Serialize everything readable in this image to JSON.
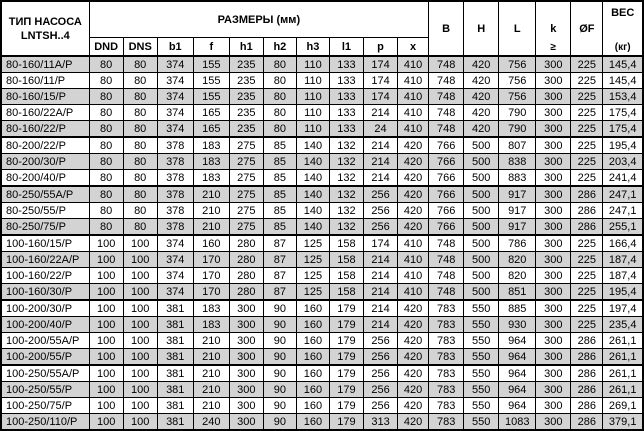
{
  "header": {
    "pump_type_line1": "ТИП НАСОСА",
    "pump_type_line2": "LNTSH..4",
    "dimensions_label": "РАЗМЕРЫ (мм)",
    "sub_columns": [
      "DND",
      "DNS",
      "b1",
      "f",
      "h1",
      "h2",
      "h3",
      "l1",
      "p",
      "x"
    ],
    "col_B": "B",
    "col_H": "H",
    "col_L": "L",
    "col_k": "k",
    "col_k_sub": "≥",
    "col_OF": "ØF",
    "weight_label": "ВЕС",
    "weight_unit": "(кг)"
  },
  "columns": [
    "DND",
    "DNS",
    "b1",
    "f",
    "h1",
    "h2",
    "h3",
    "l1",
    "p",
    "x",
    "B",
    "H",
    "L",
    "k",
    "ØF",
    "ВЕС"
  ],
  "rows": [
    {
      "type": "80-160/11A/P",
      "shaded": true,
      "group_start": false,
      "values": [
        "80",
        "80",
        "374",
        "155",
        "235",
        "80",
        "110",
        "133",
        "174",
        "410",
        "748",
        "420",
        "756",
        "300",
        "225",
        "145,4"
      ]
    },
    {
      "type": "80-160/11/P",
      "shaded": false,
      "group_start": false,
      "values": [
        "80",
        "80",
        "374",
        "155",
        "235",
        "80",
        "110",
        "133",
        "174",
        "410",
        "748",
        "420",
        "756",
        "300",
        "225",
        "145,4"
      ]
    },
    {
      "type": "80-160/15/P",
      "shaded": true,
      "group_start": false,
      "values": [
        "80",
        "80",
        "374",
        "155",
        "235",
        "80",
        "110",
        "133",
        "174",
        "410",
        "748",
        "420",
        "756",
        "300",
        "225",
        "153,4"
      ]
    },
    {
      "type": "80-160/22A/P",
      "shaded": false,
      "group_start": false,
      "values": [
        "80",
        "80",
        "374",
        "165",
        "235",
        "80",
        "110",
        "133",
        "214",
        "410",
        "748",
        "420",
        "790",
        "300",
        "225",
        "175,4"
      ]
    },
    {
      "type": "80-160/22/P",
      "shaded": true,
      "group_start": false,
      "values": [
        "80",
        "80",
        "374",
        "165",
        "235",
        "80",
        "110",
        "133",
        "24",
        "410",
        "748",
        "420",
        "790",
        "300",
        "225",
        "175,4"
      ]
    },
    {
      "type": "80-200/22/P",
      "shaded": false,
      "group_start": true,
      "values": [
        "80",
        "80",
        "378",
        "183",
        "275",
        "85",
        "140",
        "132",
        "214",
        "420",
        "766",
        "500",
        "807",
        "300",
        "225",
        "195,4"
      ]
    },
    {
      "type": "80-200/30/P",
      "shaded": true,
      "group_start": false,
      "values": [
        "80",
        "80",
        "378",
        "183",
        "275",
        "85",
        "140",
        "132",
        "214",
        "420",
        "766",
        "500",
        "838",
        "300",
        "225",
        "203,4"
      ]
    },
    {
      "type": "80-200/40/P",
      "shaded": false,
      "group_start": false,
      "values": [
        "80",
        "80",
        "378",
        "183",
        "275",
        "85",
        "140",
        "132",
        "214",
        "420",
        "766",
        "500",
        "883",
        "300",
        "225",
        "241,4"
      ]
    },
    {
      "type": "80-250/55A/P",
      "shaded": true,
      "group_start": true,
      "values": [
        "80",
        "80",
        "378",
        "210",
        "275",
        "85",
        "140",
        "132",
        "256",
        "420",
        "766",
        "500",
        "917",
        "300",
        "286",
        "247,1"
      ]
    },
    {
      "type": "80-250/55/P",
      "shaded": false,
      "group_start": false,
      "values": [
        "80",
        "80",
        "378",
        "210",
        "275",
        "85",
        "140",
        "132",
        "256",
        "420",
        "766",
        "500",
        "917",
        "300",
        "286",
        "247,1"
      ]
    },
    {
      "type": "80-250/75/P",
      "shaded": true,
      "group_start": false,
      "values": [
        "80",
        "80",
        "378",
        "210",
        "275",
        "85",
        "140",
        "132",
        "256",
        "420",
        "766",
        "500",
        "917",
        "300",
        "286",
        "255,1"
      ]
    },
    {
      "type": "100-160/15/P",
      "shaded": false,
      "group_start": true,
      "values": [
        "100",
        "100",
        "374",
        "160",
        "280",
        "87",
        "125",
        "158",
        "174",
        "410",
        "748",
        "500",
        "786",
        "300",
        "225",
        "166,4"
      ]
    },
    {
      "type": "100-160/22A/P",
      "shaded": true,
      "group_start": false,
      "values": [
        "100",
        "100",
        "374",
        "170",
        "280",
        "87",
        "125",
        "158",
        "214",
        "410",
        "748",
        "500",
        "820",
        "300",
        "225",
        "187,4"
      ]
    },
    {
      "type": "100-160/22/P",
      "shaded": false,
      "group_start": false,
      "values": [
        "100",
        "100",
        "374",
        "170",
        "280",
        "87",
        "125",
        "158",
        "214",
        "410",
        "748",
        "500",
        "820",
        "300",
        "225",
        "187,4"
      ]
    },
    {
      "type": "100-160/30/P",
      "shaded": true,
      "group_start": false,
      "values": [
        "100",
        "100",
        "374",
        "170",
        "280",
        "87",
        "125",
        "158",
        "214",
        "410",
        "748",
        "500",
        "851",
        "300",
        "225",
        "195,4"
      ]
    },
    {
      "type": "100-200/30/P",
      "shaded": false,
      "group_start": true,
      "values": [
        "100",
        "100",
        "381",
        "183",
        "300",
        "90",
        "160",
        "179",
        "214",
        "420",
        "783",
        "550",
        "885",
        "300",
        "225",
        "197,4"
      ]
    },
    {
      "type": "100-200/40/P",
      "shaded": true,
      "group_start": false,
      "values": [
        "100",
        "100",
        "381",
        "183",
        "300",
        "90",
        "160",
        "179",
        "214",
        "420",
        "783",
        "550",
        "930",
        "300",
        "225",
        "235,4"
      ]
    },
    {
      "type": "100-200/55A/P",
      "shaded": false,
      "group_start": false,
      "values": [
        "100",
        "100",
        "381",
        "210",
        "300",
        "90",
        "160",
        "179",
        "256",
        "420",
        "783",
        "550",
        "964",
        "300",
        "286",
        "261,1"
      ]
    },
    {
      "type": "100-200/55/P",
      "shaded": true,
      "group_start": false,
      "values": [
        "100",
        "100",
        "381",
        "210",
        "300",
        "90",
        "160",
        "179",
        "256",
        "420",
        "783",
        "550",
        "964",
        "300",
        "286",
        "261,1"
      ]
    },
    {
      "type": "100-250/55A/P",
      "shaded": false,
      "group_start": true,
      "values": [
        "100",
        "100",
        "381",
        "210",
        "300",
        "90",
        "160",
        "179",
        "256",
        "420",
        "783",
        "550",
        "964",
        "300",
        "286",
        "261,1"
      ]
    },
    {
      "type": "100-250/55/P",
      "shaded": true,
      "group_start": false,
      "values": [
        "100",
        "100",
        "381",
        "210",
        "300",
        "90",
        "160",
        "179",
        "256",
        "420",
        "783",
        "550",
        "964",
        "300",
        "286",
        "261,1"
      ]
    },
    {
      "type": "100-250/75/P",
      "shaded": false,
      "group_start": false,
      "values": [
        "100",
        "100",
        "381",
        "210",
        "300",
        "90",
        "160",
        "179",
        "256",
        "420",
        "783",
        "550",
        "964",
        "300",
        "286",
        "269,1"
      ]
    },
    {
      "type": "100-250/110/P",
      "shaded": true,
      "group_start": false,
      "values": [
        "100",
        "100",
        "381",
        "240",
        "300",
        "90",
        "160",
        "179",
        "313",
        "420",
        "783",
        "550",
        "1083",
        "300",
        "286",
        "379,1"
      ]
    }
  ],
  "colors": {
    "row_shaded": "#d3d3d3",
    "row_default": "#ffffff",
    "border": "#000000",
    "text": "#000000"
  }
}
